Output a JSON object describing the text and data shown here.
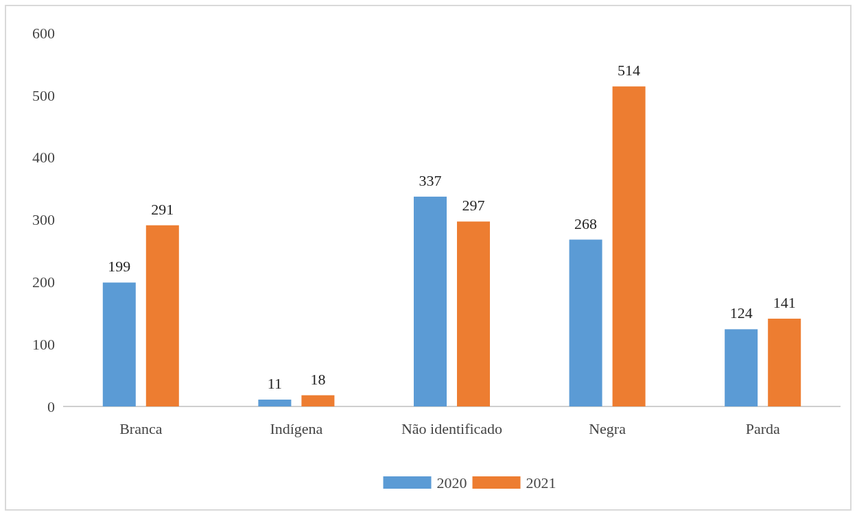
{
  "chart_data": {
    "type": "bar",
    "categories": [
      "Branca",
      "Indígena",
      "Não identificado",
      "Negra",
      "Parda"
    ],
    "series": [
      {
        "name": "2020",
        "color": "#5b9bd5",
        "values": [
          199,
          11,
          337,
          268,
          124
        ]
      },
      {
        "name": "2021",
        "color": "#ed7d31",
        "values": [
          291,
          18,
          297,
          514,
          141
        ]
      }
    ],
    "ylim": [
      0,
      600
    ],
    "yticks": [
      0,
      100,
      200,
      300,
      400,
      500,
      600
    ],
    "data_labels": true,
    "legend": "bottom",
    "grid": false
  }
}
